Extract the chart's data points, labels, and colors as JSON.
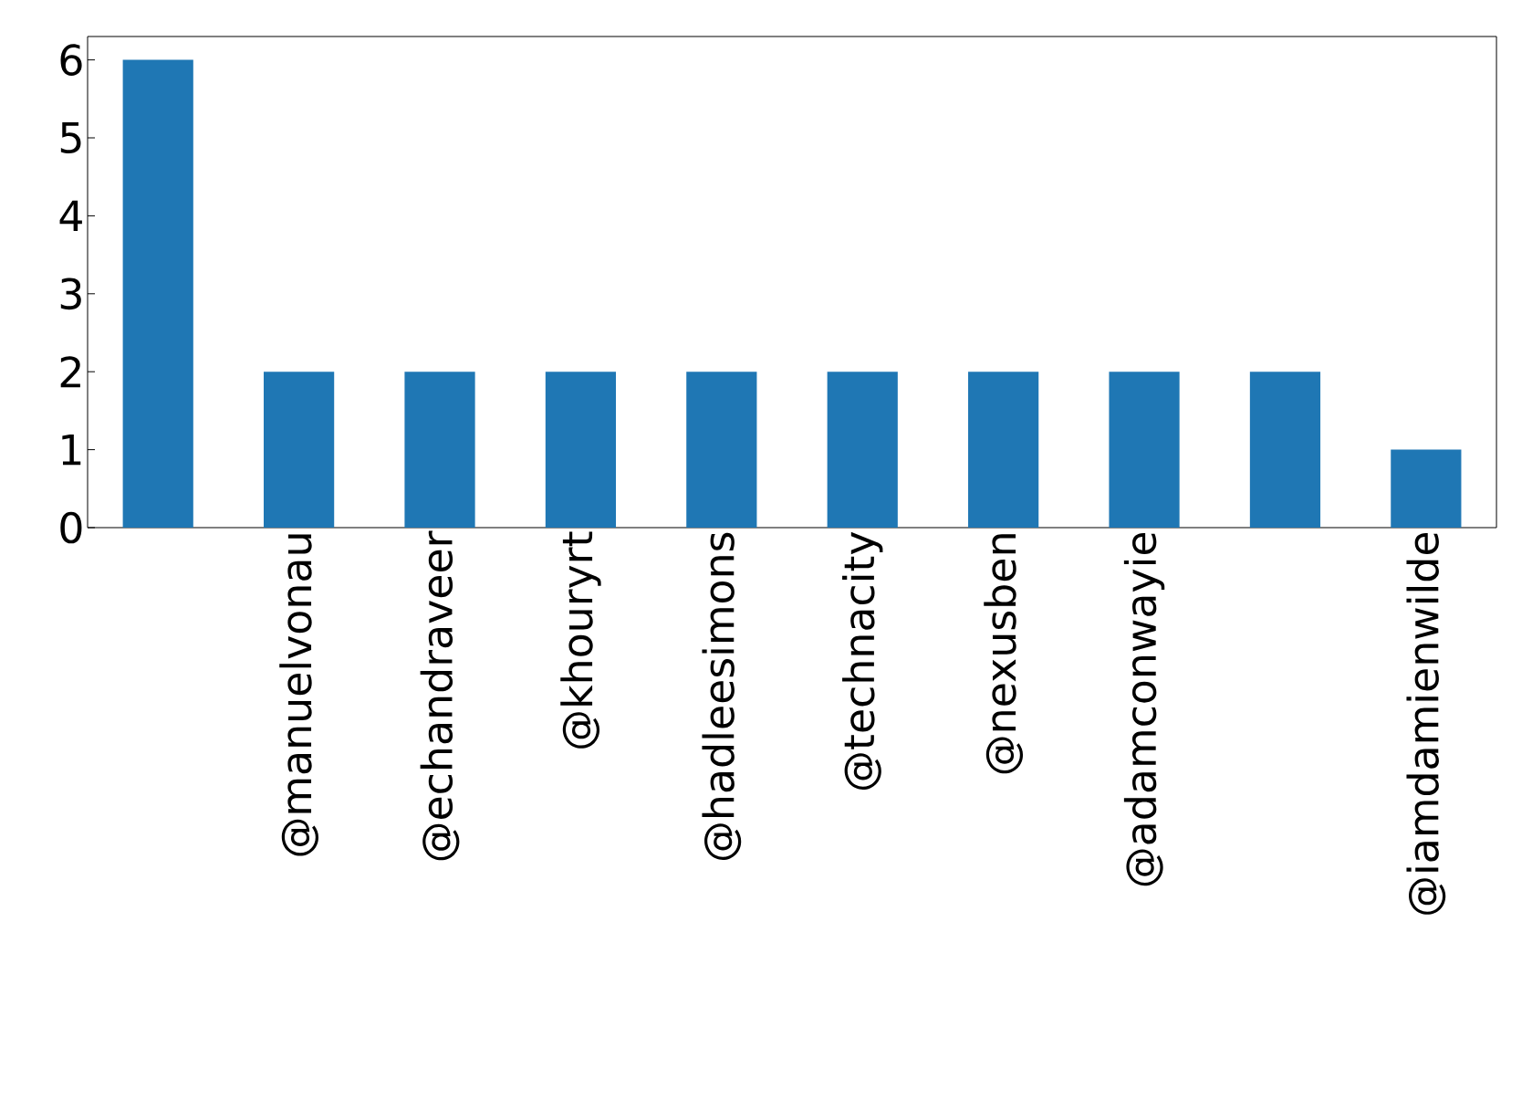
{
  "chart_data": {
    "type": "bar",
    "categories": [
      null,
      "@manuelvonau",
      "@echandraveer",
      "@khouryrt",
      "@hadleesimons",
      "@technacity",
      "@nexusben",
      "@adamconwayie",
      null,
      "@iamdamienwilde"
    ],
    "values": [
      6,
      2,
      2,
      2,
      2,
      2,
      2,
      2,
      2,
      1
    ],
    "color": "#1f77b4",
    "ylim": [
      0,
      6.3
    ],
    "yticks": [
      0,
      1,
      2,
      3,
      4,
      5,
      6
    ]
  }
}
